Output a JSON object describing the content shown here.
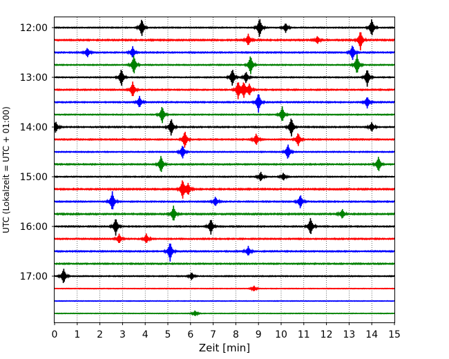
{
  "chart_data": {
    "type": "line",
    "title": "",
    "xlabel": "Zeit  [min]",
    "ylabel": "UTC (Lokalzeit = UTC + 01:00)",
    "xlim": [
      0,
      15
    ],
    "x_ticks": [
      "0",
      "1",
      "2",
      "3",
      "4",
      "5",
      "6",
      "7",
      "8",
      "9",
      "10",
      "11",
      "12",
      "13",
      "14",
      "15"
    ],
    "y_ticks": [
      "12:00",
      "13:00",
      "14:00",
      "15:00",
      "16:00",
      "17:00"
    ],
    "grid": "x, dotted",
    "colors": [
      "#000000",
      "#ff0000",
      "#0000ff",
      "#008000"
    ],
    "series": [
      {
        "start": "12:00",
        "amp": 0.25,
        "spikes": [
          {
            "x": 3.85,
            "a": 0.9
          },
          {
            "x": 9.05,
            "a": 1.0
          },
          {
            "x": 10.2,
            "a": 0.5
          },
          {
            "x": 14.0,
            "a": 0.9
          }
        ]
      },
      {
        "start": "12:15",
        "amp": 0.35,
        "spikes": [
          {
            "x": 8.55,
            "a": 0.6
          },
          {
            "x": 11.6,
            "a": 0.4
          },
          {
            "x": 13.5,
            "a": 1.0
          }
        ]
      },
      {
        "start": "12:30",
        "amp": 0.3,
        "spikes": [
          {
            "x": 1.45,
            "a": 0.5
          },
          {
            "x": 3.45,
            "a": 0.6
          },
          {
            "x": 13.15,
            "a": 0.8
          }
        ]
      },
      {
        "start": "12:45",
        "amp": 0.25,
        "spikes": [
          {
            "x": 3.5,
            "a": 1.0
          },
          {
            "x": 8.65,
            "a": 1.0
          },
          {
            "x": 13.35,
            "a": 1.0
          }
        ]
      },
      {
        "start": "13:00",
        "amp": 0.25,
        "spikes": [
          {
            "x": 2.95,
            "a": 0.9
          },
          {
            "x": 7.85,
            "a": 0.9
          },
          {
            "x": 8.45,
            "a": 0.6
          },
          {
            "x": 13.8,
            "a": 0.9
          }
        ]
      },
      {
        "start": "13:15",
        "amp": 0.3,
        "spikes": [
          {
            "x": 3.45,
            "a": 0.8
          },
          {
            "x": 8.1,
            "a": 0.9
          },
          {
            "x": 8.35,
            "a": 0.8
          },
          {
            "x": 8.6,
            "a": 0.6
          }
        ]
      },
      {
        "start": "13:30",
        "amp": 0.3,
        "spikes": [
          {
            "x": 3.75,
            "a": 0.6
          },
          {
            "x": 9.0,
            "a": 1.0
          },
          {
            "x": 13.8,
            "a": 0.6
          }
        ]
      },
      {
        "start": "13:45",
        "amp": 0.25,
        "spikes": [
          {
            "x": 4.75,
            "a": 0.9
          },
          {
            "x": 10.05,
            "a": 0.8
          }
        ]
      },
      {
        "start": "14:00",
        "amp": 0.3,
        "spikes": [
          {
            "x": 0.05,
            "a": 0.6
          },
          {
            "x": 5.15,
            "a": 0.9
          },
          {
            "x": 10.45,
            "a": 1.0
          },
          {
            "x": 14.0,
            "a": 0.5
          }
        ]
      },
      {
        "start": "14:15",
        "amp": 0.3,
        "spikes": [
          {
            "x": 5.75,
            "a": 0.9
          },
          {
            "x": 8.9,
            "a": 0.6
          },
          {
            "x": 10.75,
            "a": 0.7
          }
        ]
      },
      {
        "start": "14:30",
        "amp": 0.25,
        "spikes": [
          {
            "x": 5.65,
            "a": 0.7
          },
          {
            "x": 10.3,
            "a": 0.8
          }
        ]
      },
      {
        "start": "14:45",
        "amp": 0.3,
        "spikes": [
          {
            "x": 4.7,
            "a": 0.9
          },
          {
            "x": 14.3,
            "a": 0.8
          }
        ]
      },
      {
        "start": "15:00",
        "amp": 0.25,
        "spikes": [
          {
            "x": 9.1,
            "a": 0.5
          },
          {
            "x": 10.1,
            "a": 0.4
          }
        ]
      },
      {
        "start": "15:15",
        "amp": 0.35,
        "spikes": [
          {
            "x": 5.65,
            "a": 1.0
          },
          {
            "x": 5.9,
            "a": 0.6
          }
        ]
      },
      {
        "start": "15:30",
        "amp": 0.3,
        "spikes": [
          {
            "x": 2.55,
            "a": 1.0
          },
          {
            "x": 7.1,
            "a": 0.5
          },
          {
            "x": 10.85,
            "a": 0.7
          }
        ]
      },
      {
        "start": "15:45",
        "amp": 0.35,
        "spikes": [
          {
            "x": 5.25,
            "a": 0.8
          },
          {
            "x": 12.7,
            "a": 0.5
          }
        ]
      },
      {
        "start": "16:00",
        "amp": 0.3,
        "spikes": [
          {
            "x": 2.7,
            "a": 0.9
          },
          {
            "x": 6.9,
            "a": 0.8
          },
          {
            "x": 11.3,
            "a": 0.9
          }
        ]
      },
      {
        "start": "16:15",
        "amp": 0.3,
        "spikes": [
          {
            "x": 2.85,
            "a": 0.5
          },
          {
            "x": 4.05,
            "a": 0.5
          }
        ]
      },
      {
        "start": "16:30",
        "amp": 0.3,
        "spikes": [
          {
            "x": 5.1,
            "a": 1.0
          },
          {
            "x": 8.55,
            "a": 0.5
          }
        ]
      },
      {
        "start": "16:45",
        "amp": 0.3,
        "spikes": []
      },
      {
        "start": "17:00",
        "amp": 0.25,
        "spikes": [
          {
            "x": 0.4,
            "a": 0.8
          },
          {
            "x": 6.05,
            "a": 0.4
          }
        ]
      },
      {
        "start": "17:15",
        "amp": 0.15,
        "spikes": [
          {
            "x": 8.8,
            "a": 0.3
          }
        ]
      },
      {
        "start": "17:30",
        "amp": 0.15,
        "spikes": []
      },
      {
        "start": "17:45",
        "amp": 0.15,
        "spikes": [
          {
            "x": 6.2,
            "a": 0.3
          }
        ]
      }
    ]
  }
}
